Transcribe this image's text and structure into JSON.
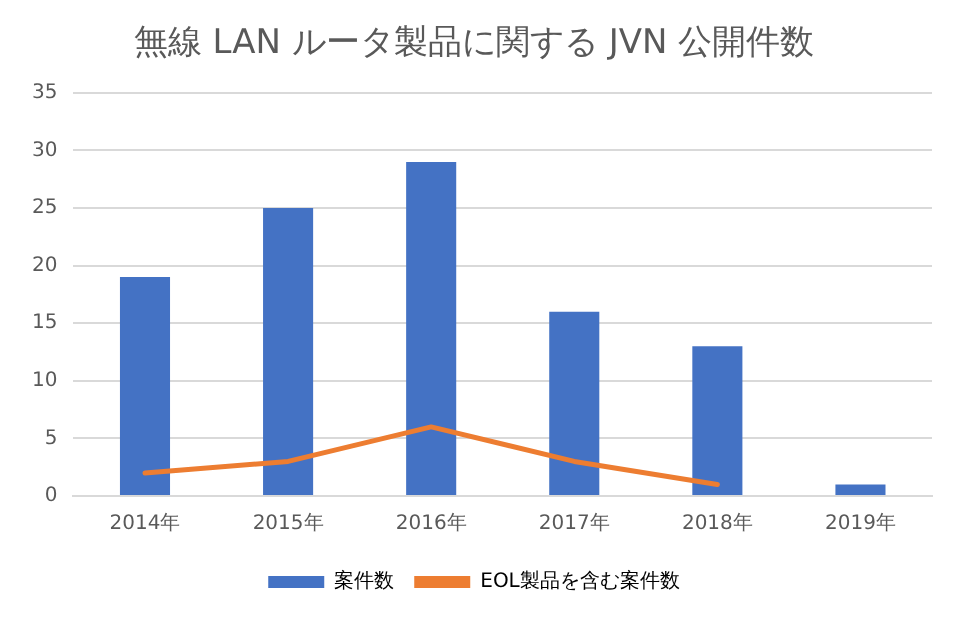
{
  "chart_data": {
    "type": "bar",
    "title": "無線 LAN ルータ製品に関する JVN 公開件数",
    "categories": [
      "2014年",
      "2015年",
      "2016年",
      "2017年",
      "2018年",
      "2019年"
    ],
    "series": [
      {
        "name": "案件数",
        "color": "#4472c4",
        "values": [
          19,
          25,
          29,
          16,
          13,
          1
        ]
      },
      {
        "name": "EOL製品を含む案件数",
        "type": "line",
        "color": "#ed7d31",
        "values": [
          2,
          3,
          6,
          3,
          1,
          null
        ]
      }
    ],
    "ylim": [
      0,
      35
    ],
    "yticks": [
      0,
      5,
      10,
      15,
      20,
      25,
      30,
      35
    ],
    "grid": "y",
    "legend": "bottom",
    "marker": "none"
  }
}
